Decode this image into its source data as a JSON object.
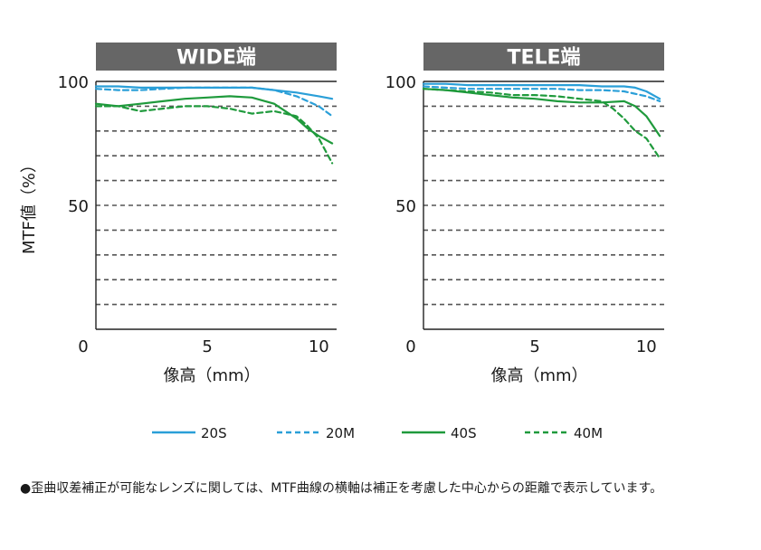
{
  "chart_data": [
    {
      "type": "line",
      "title": "WIDE端",
      "xlabel": "像高（mm）",
      "ylabel": "MTF値（%）",
      "xlim": [
        0,
        10.8
      ],
      "ylim": [
        0,
        100
      ],
      "xticks": [
        "0",
        "5",
        "10"
      ],
      "yticks": [
        "100",
        "50"
      ],
      "grid": "dashed-horizontal every 10",
      "series": [
        {
          "name": "20S",
          "color": "#2a9fd8",
          "style": "solid",
          "x": [
            0,
            1,
            2,
            3,
            4,
            5,
            6,
            7,
            8,
            9,
            10,
            10.6
          ],
          "y": [
            98,
            98,
            97.5,
            97.5,
            97.5,
            97.5,
            97.5,
            97.5,
            96.5,
            95.5,
            94,
            93
          ]
        },
        {
          "name": "20M",
          "color": "#2a9fd8",
          "style": "dashed",
          "x": [
            0,
            1,
            2,
            3,
            4,
            5,
            6,
            7,
            8,
            9,
            9.5,
            10,
            10.6
          ],
          "y": [
            97,
            96.5,
            96.5,
            97,
            97.5,
            97.5,
            97.5,
            97.5,
            96.5,
            94,
            92,
            90,
            86
          ]
        },
        {
          "name": "40S",
          "color": "#1f9a3c",
          "style": "solid",
          "x": [
            0,
            1,
            2,
            3,
            4,
            5,
            6,
            7,
            8,
            8.5,
            9,
            9.5,
            10,
            10.6
          ],
          "y": [
            91,
            90,
            91,
            92,
            93,
            93.5,
            94,
            93.5,
            91,
            88,
            85,
            81,
            78,
            75
          ]
        },
        {
          "name": "40M",
          "color": "#1f9a3c",
          "style": "dashed",
          "x": [
            0,
            1,
            2,
            3,
            4,
            5,
            6,
            7,
            8,
            9,
            9.5,
            10,
            10.6
          ],
          "y": [
            90,
            90,
            88,
            89,
            90,
            90,
            89,
            87,
            88,
            86,
            82,
            77,
            67
          ]
        }
      ]
    },
    {
      "type": "line",
      "title": "TELE端",
      "xlabel": "像高（mm）",
      "ylabel": "",
      "xlim": [
        0,
        10.8
      ],
      "ylim": [
        0,
        100
      ],
      "xticks": [
        "0",
        "5",
        "10"
      ],
      "yticks": [
        "100",
        "50"
      ],
      "grid": "dashed-horizontal every 10",
      "series": [
        {
          "name": "20S",
          "color": "#2a9fd8",
          "style": "solid",
          "x": [
            0,
            1,
            2,
            3,
            4,
            5,
            6,
            7,
            8,
            9,
            9.5,
            10,
            10.6
          ],
          "y": [
            99,
            99,
            98.5,
            98.5,
            98.5,
            98.5,
            98.5,
            98.5,
            98,
            98,
            97.5,
            96,
            93
          ]
        },
        {
          "name": "20M",
          "color": "#2a9fd8",
          "style": "dashed",
          "x": [
            0,
            1,
            2,
            3,
            4,
            5,
            6,
            7,
            8,
            9,
            10,
            10.6
          ],
          "y": [
            98,
            97.5,
            97,
            97,
            97,
            97,
            97,
            96.5,
            96.5,
            96,
            94,
            92
          ]
        },
        {
          "name": "40S",
          "color": "#1f9a3c",
          "style": "solid",
          "x": [
            0,
            1,
            2,
            3,
            4,
            5,
            6,
            7,
            8,
            9,
            9.5,
            10,
            10.3,
            10.6
          ],
          "y": [
            97,
            96.5,
            95.5,
            94.5,
            93.5,
            93,
            92,
            91.5,
            91.5,
            92,
            90,
            86,
            82,
            78
          ]
        },
        {
          "name": "40M",
          "color": "#1f9a3c",
          "style": "dashed",
          "x": [
            0,
            1,
            2,
            3,
            4,
            5,
            6,
            7,
            8,
            8.5,
            9,
            9.5,
            10,
            10.6
          ],
          "y": [
            97,
            96.5,
            96,
            95.5,
            94.5,
            94.5,
            94,
            93,
            92,
            89,
            85,
            80,
            77,
            69
          ]
        }
      ]
    }
  ],
  "legend": [
    {
      "label": "20S",
      "color": "#2a9fd8",
      "style": "solid"
    },
    {
      "label": "20M",
      "color": "#2a9fd8",
      "style": "dashed"
    },
    {
      "label": "40S",
      "color": "#1f9a3c",
      "style": "solid"
    },
    {
      "label": "40M",
      "color": "#1f9a3c",
      "style": "dashed"
    }
  ],
  "colors": {
    "title_bar": "#666666",
    "grid": "#555555",
    "axis": "#222222"
  },
  "footnote": "●歪曲収差補正が可能なレンズに関しては、MTF曲線の横軸は補正を考慮した中心からの距離で表示しています。"
}
